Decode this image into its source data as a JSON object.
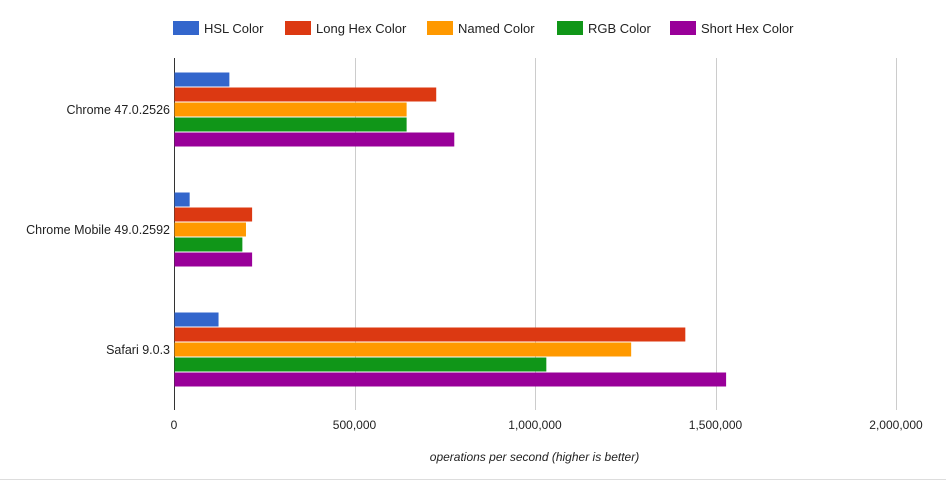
{
  "chart_data": {
    "type": "bar",
    "orientation": "horizontal",
    "title": "",
    "categories": [
      "Chrome 47.0.2526",
      "Chrome Mobile 49.0.2592",
      "Safari 9.0.3"
    ],
    "series": [
      {
        "name": "HSL Color",
        "color": "#3366cc",
        "values": [
          152000,
          42000,
          122000
        ]
      },
      {
        "name": "Long Hex Color",
        "color": "#dc3912",
        "values": [
          725000,
          215000,
          1415000
        ]
      },
      {
        "name": "Named Color",
        "color": "#ff9900",
        "values": [
          643000,
          198000,
          1265000
        ]
      },
      {
        "name": "RGB Color",
        "color": "#109618",
        "values": [
          643000,
          188000,
          1030000
        ]
      },
      {
        "name": "Short Hex Color",
        "color": "#990099",
        "values": [
          775000,
          215000,
          1528000
        ]
      }
    ],
    "xlabel": "operations per second (higher is better)",
    "ylabel": "",
    "xlim": [
      0,
      2000000
    ],
    "xticks": [
      "0",
      "500,000",
      "1,000,000",
      "1,500,000",
      "2,000,000"
    ],
    "xtick_values": [
      0,
      500000,
      1000000,
      1500000,
      2000000
    ],
    "grid": true,
    "legend_position": "top"
  }
}
